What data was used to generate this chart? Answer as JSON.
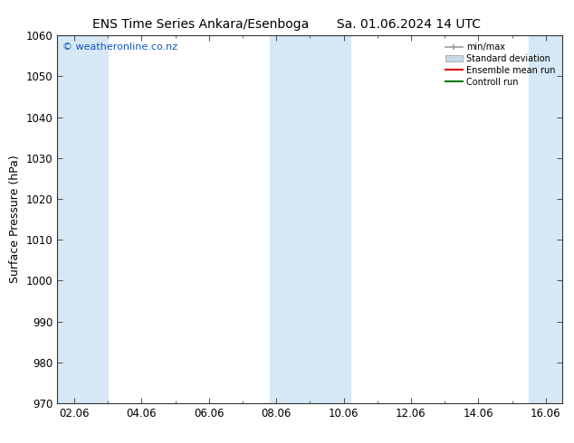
{
  "title": "ENS Time Series Ankara/Esenboga",
  "title2": "Sa. 01.06.2024 14 UTC",
  "ylabel": "Surface Pressure (hPa)",
  "ylim": [
    970,
    1060
  ],
  "yticks": [
    970,
    980,
    990,
    1000,
    1010,
    1020,
    1030,
    1040,
    1050,
    1060
  ],
  "x_labels": [
    "02.06",
    "04.06",
    "06.06",
    "08.06",
    "10.06",
    "12.06",
    "14.06",
    "16.06"
  ],
  "x_positions": [
    0,
    2,
    4,
    6,
    8,
    10,
    12,
    14
  ],
  "x_min": -0.5,
  "x_max": 14.5,
  "shaded_bands": [
    {
      "x_start": -0.5,
      "x_end": 1.0,
      "color": "#d6e8f5"
    },
    {
      "x_start": 5.8,
      "x_end": 8.2,
      "color": "#d6e8f5"
    },
    {
      "x_start": 13.5,
      "x_end": 14.5,
      "color": "#d6e8f5"
    }
  ],
  "watermark": "© weatheronline.co.nz",
  "watermark_color": "#1155bb",
  "background_color": "#ffffff",
  "plot_bg_color": "#ffffff",
  "legend_entries": [
    "min/max",
    "Standard deviation",
    "Ensemble mean run",
    "Controll run"
  ],
  "legend_colors": [
    "#999999",
    "#c5d9e8",
    "#dd0000",
    "#007700"
  ],
  "legend_edge_color": "#999999",
  "grid_color": "#cccccc",
  "axis_color": "#333333",
  "font_color": "#000000",
  "title_fontsize": 10,
  "tick_fontsize": 8.5,
  "label_fontsize": 9,
  "watermark_fontsize": 8
}
